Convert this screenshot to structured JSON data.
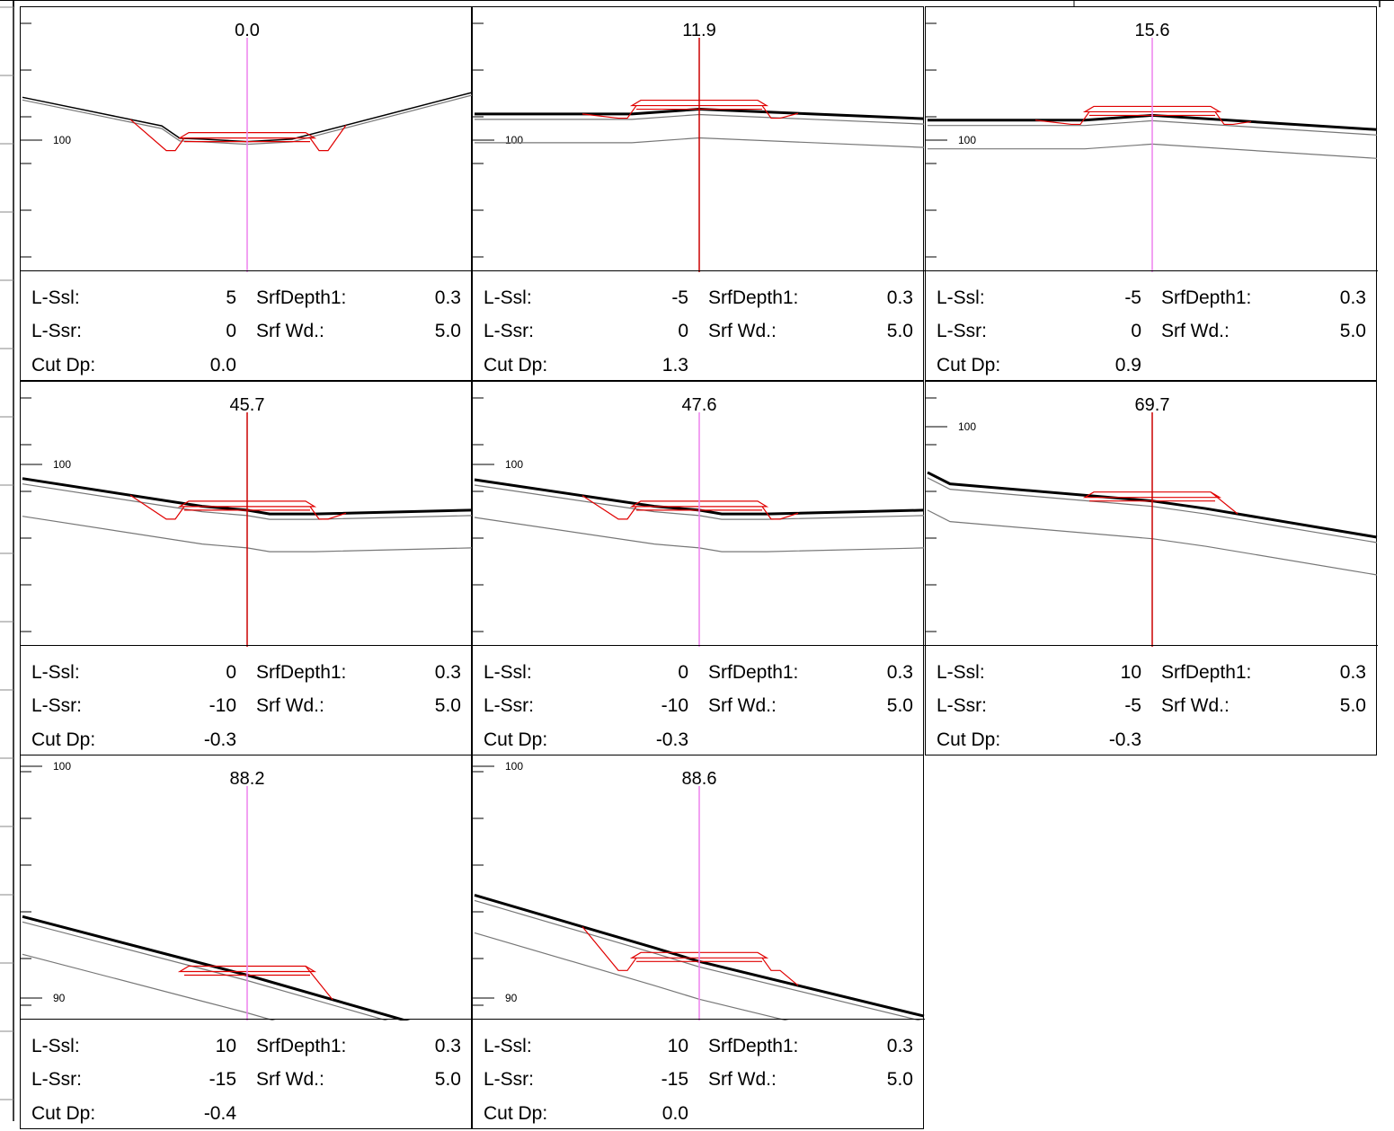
{
  "labels": {
    "lssl": "L-Ssl:",
    "lssr": "L-Ssr:",
    "cutdp": "Cut Dp:",
    "srfdepth": "SrfDepth1:",
    "srfwd": "Srf Wd.:"
  },
  "colors": {
    "profile": "#000000",
    "layer": "#777777",
    "template": "#e00000",
    "centerline_magenta": "#ee82ee",
    "centerline_red": "#cc0000"
  },
  "panels": [
    {
      "station": "0.0",
      "l_ssl": "5",
      "l_ssr": "0",
      "cut_dp": "0.0",
      "srf_depth": "0.3",
      "srf_wd": "5.0",
      "centerline": "magenta",
      "y_tick_labels": [
        {
          "value": "100"
        }
      ],
      "ditches": true,
      "ground": [
        [
          -50,
          100.9
        ],
        [
          -19,
          100.3
        ],
        [
          -15,
          100.04
        ],
        [
          -10,
          100.02
        ],
        [
          0,
          99.97
        ],
        [
          10,
          100.02
        ],
        [
          50,
          101.0
        ]
      ]
    },
    {
      "station": "11.9",
      "l_ssl": "-5",
      "l_ssr": "0",
      "cut_dp": "1.3",
      "srf_depth": "0.3",
      "srf_wd": "5.0",
      "centerline": "red",
      "y_tick_labels": [
        {
          "value": "100"
        }
      ],
      "ditches": true,
      "ground": [
        [
          -50,
          100.55
        ],
        [
          -15,
          100.55
        ],
        [
          0,
          100.65
        ],
        [
          50,
          100.45
        ]
      ]
    },
    {
      "station": "15.6",
      "l_ssl": "-5",
      "l_ssr": "0",
      "cut_dp": "0.9",
      "srf_depth": "0.3",
      "srf_wd": "5.0",
      "centerline": "magenta",
      "y_tick_labels": [
        {
          "value": "100"
        }
      ],
      "ditches": true,
      "ground": [
        [
          -50,
          100.42
        ],
        [
          -15,
          100.42
        ],
        [
          0,
          100.52
        ],
        [
          50,
          100.22
        ]
      ]
    },
    {
      "station": "45.7",
      "l_ssl": "0",
      "l_ssr": "-10",
      "cut_dp": "-0.3",
      "srf_depth": "0.3",
      "srf_wd": "5.0",
      "centerline": "red",
      "y_tick_labels": [
        {
          "value": "100"
        }
      ],
      "ditches": true,
      "ground": [
        [
          -50,
          99.63
        ],
        [
          -10,
          98.9
        ],
        [
          0,
          98.8
        ],
        [
          5,
          98.7
        ],
        [
          15,
          98.7
        ],
        [
          50,
          98.8
        ]
      ]
    },
    {
      "station": "47.6",
      "l_ssl": "0",
      "l_ssr": "-10",
      "cut_dp": "-0.3",
      "srf_depth": "0.3",
      "srf_wd": "5.0",
      "centerline": "magenta",
      "y_tick_labels": [
        {
          "value": "100"
        }
      ],
      "ditches": true,
      "ground": [
        [
          -50,
          99.6
        ],
        [
          -10,
          98.9
        ],
        [
          0,
          98.8
        ],
        [
          5,
          98.7
        ],
        [
          15,
          98.7
        ],
        [
          50,
          98.8
        ]
      ]
    },
    {
      "station": "69.7",
      "l_ssl": "10",
      "l_ssr": "-5",
      "cut_dp": "-0.3",
      "srf_depth": "0.3",
      "srf_wd": "5.0",
      "centerline": "red",
      "y_tick_labels": [
        {
          "value": "100"
        }
      ],
      "ditches": false,
      "ground": [
        [
          -50,
          98.8
        ],
        [
          -45,
          98.5
        ],
        [
          0,
          98.05
        ],
        [
          12,
          97.85
        ],
        [
          50,
          97.1
        ]
      ]
    },
    {
      "station": "88.2",
      "l_ssl": "10",
      "l_ssr": "-15",
      "cut_dp": "-0.4",
      "srf_depth": "0.3",
      "srf_wd": "5.0",
      "centerline": "magenta",
      "y_tick_labels": [
        {
          "value": "100"
        },
        {
          "value": "90"
        }
      ],
      "ditches": false,
      "ground": [
        [
          -50,
          96.15
        ],
        [
          -10,
          94.95
        ],
        [
          0,
          94.65
        ],
        [
          50,
          93.0
        ]
      ]
    },
    {
      "station": "88.6",
      "l_ssl": "10",
      "l_ssr": "-15",
      "cut_dp": "0.0",
      "srf_depth": "0.3",
      "srf_wd": "5.0",
      "centerline": "magenta",
      "y_tick_labels": [
        {
          "value": "100"
        },
        {
          "value": "90"
        }
      ],
      "ditches": true,
      "ground": [
        [
          -50,
          96.7
        ],
        [
          -10,
          95.35
        ],
        [
          0,
          95.0
        ],
        [
          50,
          93.6
        ]
      ]
    }
  ]
}
